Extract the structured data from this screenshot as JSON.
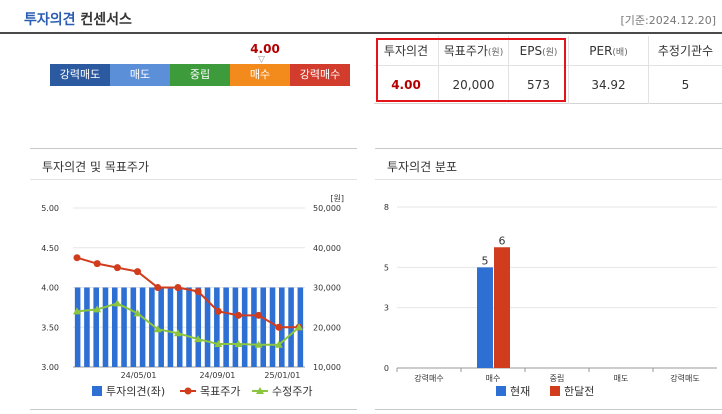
{
  "header": {
    "title_blue": "투자의견",
    "title_rest": "컨센서스",
    "date": "[기준:2024.12.20]"
  },
  "scale": {
    "current_value": "4.00",
    "current_numeric": 4.0,
    "segments": [
      "강력매도",
      "매도",
      "중립",
      "매수",
      "강력매수"
    ]
  },
  "consensus": {
    "headers": [
      {
        "label": "투자의견",
        "unit": ""
      },
      {
        "label": "목표주가",
        "unit": "(원)"
      },
      {
        "label": "EPS",
        "unit": "(원)"
      },
      {
        "label": "PER",
        "unit": "(배)"
      },
      {
        "label": "추정기관수",
        "unit": ""
      }
    ],
    "values": [
      "4.00",
      "20,000",
      "573",
      "34.92",
      "5"
    ]
  },
  "left_panel": {
    "title": "투자의견 및 목표주가"
  },
  "right_panel": {
    "title": "투자의견 분포"
  },
  "chart_data": [
    {
      "type": "bar+line",
      "left_axis": {
        "ticks": [
          "5.00",
          "4.50",
          "4.00",
          "3.50",
          "3.00"
        ],
        "range": [
          3.0,
          5.0
        ]
      },
      "right_axis": {
        "unit_label": "[원]",
        "ticks": [
          "50,000",
          "40,000",
          "30,000",
          "20,000",
          "10,000"
        ],
        "range": [
          10000,
          50000
        ]
      },
      "x_tick_labels": [
        "24/05/01",
        "24/09/01",
        "25/01/01"
      ],
      "series": [
        {
          "name": "투자의견(좌)",
          "axis": "left",
          "kind": "bar",
          "color": "#2d6fd3",
          "values": [
            4,
            4,
            4,
            4,
            4,
            4,
            4,
            4,
            4,
            4,
            4,
            4,
            4,
            4,
            4,
            4,
            4,
            4,
            4,
            4,
            4,
            4,
            4,
            4,
            4
          ]
        },
        {
          "name": "목표주가",
          "axis": "right",
          "kind": "line",
          "color": "#d13c1c",
          "values": [
            37500,
            36000,
            35000,
            34000,
            30000,
            30000,
            29000,
            24000,
            23000,
            23000,
            20000,
            20000
          ]
        },
        {
          "name": "수정주가",
          "axis": "right",
          "kind": "line",
          "color": "#8cc63f",
          "values": [
            24000,
            24500,
            26000,
            23500,
            19500,
            18500,
            17000,
            15800,
            15800,
            15600,
            15600,
            20000
          ]
        }
      ]
    },
    {
      "type": "bar",
      "categories": [
        "강력매수",
        "매수",
        "중립",
        "매도",
        "강력매도"
      ],
      "y_ticks": [
        "8",
        "5",
        "3",
        "0"
      ],
      "ylim": [
        0,
        8
      ],
      "series": [
        {
          "name": "현재",
          "color": "#2d6fd3",
          "values": [
            0,
            5,
            0,
            0,
            0
          ]
        },
        {
          "name": "한달전",
          "color": "#d13c1c",
          "values": [
            0,
            6,
            0,
            0,
            0
          ]
        }
      ]
    }
  ]
}
